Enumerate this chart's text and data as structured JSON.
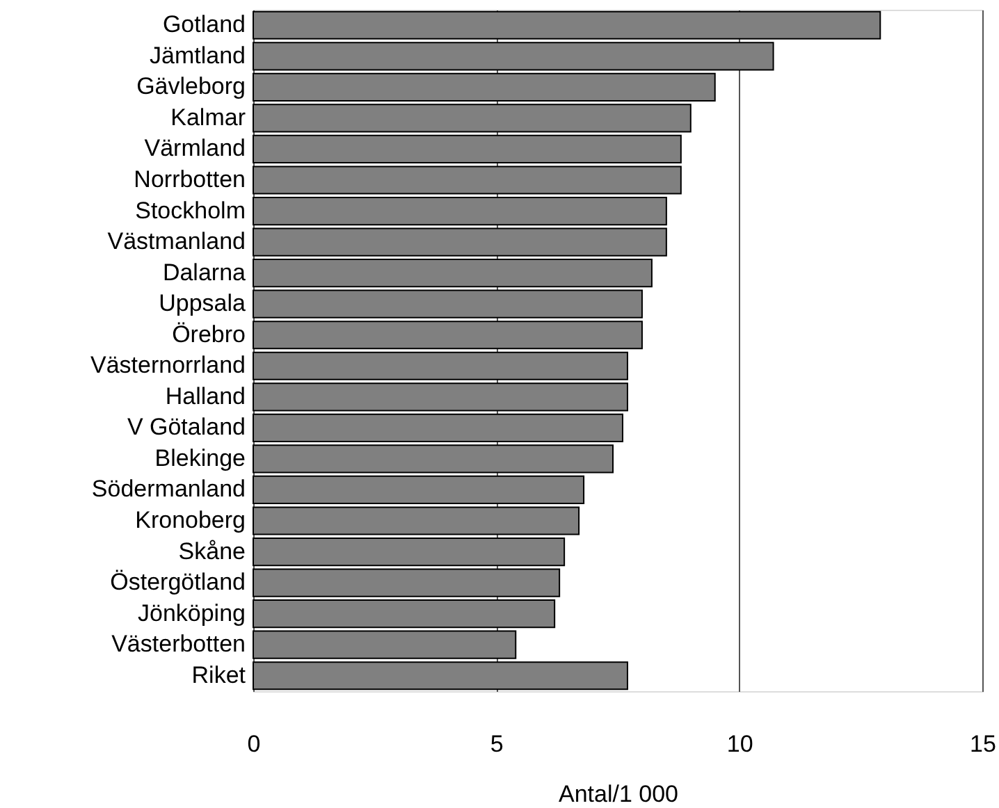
{
  "chart_data": {
    "type": "bar",
    "orientation": "horizontal",
    "xlabel": "Antal/1 000",
    "categories": [
      "Gotland",
      "Jämtland",
      "Gävleborg",
      "Kalmar",
      "Värmland",
      "Norrbotten",
      "Stockholm",
      "Västmanland",
      "Dalarna",
      "Uppsala",
      "Örebro",
      "Västernorrland",
      "Halland",
      "V Götaland",
      "Blekinge",
      "Södermanland",
      "Kronoberg",
      "Skåne",
      "Östergötland",
      "Jönköping",
      "Västerbotten",
      "Riket"
    ],
    "values": [
      12.9,
      10.7,
      9.5,
      9.0,
      8.8,
      8.8,
      8.5,
      8.5,
      8.2,
      8.0,
      8.0,
      7.7,
      7.7,
      7.6,
      7.4,
      6.8,
      6.7,
      6.4,
      6.3,
      6.2,
      5.4,
      7.7
    ],
    "color": "#808080",
    "xlim": [
      0,
      15
    ],
    "xticks": [
      0,
      5,
      10,
      15
    ],
    "grid": "x"
  }
}
